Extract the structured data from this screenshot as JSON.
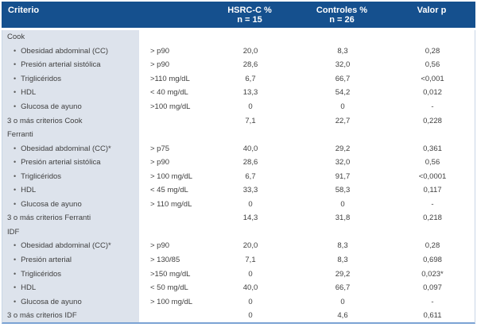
{
  "colors": {
    "header_bg": "#15508e",
    "header_text": "#ffffff",
    "row_label_bg": "#dde3ec",
    "body_text": "#3f3f3f",
    "border_light": "#c9d6e6",
    "border_bottom": "#7ba3d4"
  },
  "table": {
    "header": {
      "criterio": "Criterio",
      "hsrc_line1": "HSRC-C %",
      "hsrc_line2": "n = 15",
      "controles_line1": "Controles %",
      "controles_line2": "n = 26",
      "valor_p": "Valor p"
    },
    "rows": [
      {
        "type": "section",
        "label": "Cook",
        "threshold": "",
        "hsrc": "",
        "controles": "",
        "p": ""
      },
      {
        "type": "item",
        "label": "Obesidad abdominal (CC)",
        "threshold": "> p90",
        "hsrc": "20,0",
        "controles": "8,3",
        "p": "0,28"
      },
      {
        "type": "item",
        "label": "Presión arterial sistólica",
        "threshold": "> p90",
        "hsrc": "28,6",
        "controles": "32,0",
        "p": "0,56"
      },
      {
        "type": "item",
        "label": "Triglicéridos",
        "threshold": ">110 mg/dL",
        "hsrc": "6,7",
        "controles": "66,7",
        "p": "<0,001"
      },
      {
        "type": "item",
        "label": "HDL",
        "threshold": "< 40 mg/dL",
        "hsrc": "13,3",
        "controles": "54,2",
        "p": "0,012"
      },
      {
        "type": "item",
        "label": "Glucosa de ayuno",
        "threshold": ">100 mg/dL",
        "hsrc": "0",
        "controles": "0",
        "p": "-"
      },
      {
        "type": "summary",
        "label": "3 o más criterios Cook",
        "threshold": "",
        "hsrc": "7,1",
        "controles": "22,7",
        "p": "0,228"
      },
      {
        "type": "section",
        "label": "Ferranti",
        "threshold": "",
        "hsrc": "",
        "controles": "",
        "p": ""
      },
      {
        "type": "item",
        "label": "Obesidad abdominal (CC)*",
        "threshold": "> p75",
        "hsrc": "40,0",
        "controles": "29,2",
        "p": "0,361"
      },
      {
        "type": "item",
        "label": "Presión arterial sistólica",
        "threshold": "> p90",
        "hsrc": "28,6",
        "controles": "32,0",
        "p": "0,56"
      },
      {
        "type": "item",
        "label": "Triglicéridos",
        "threshold": "> 100 mg/dL",
        "hsrc": "6,7",
        "controles": "91,7",
        "p": "<0,0001"
      },
      {
        "type": "item",
        "label": "HDL",
        "threshold": "< 45 mg/dL",
        "hsrc": "33,3",
        "controles": "58,3",
        "p": "0,117"
      },
      {
        "type": "item",
        "label": "Glucosa de ayuno",
        "threshold": "> 110 mg/dL",
        "hsrc": "0",
        "controles": "0",
        "p": "-"
      },
      {
        "type": "summary",
        "label": "3 o más criterios Ferranti",
        "threshold": "",
        "hsrc": "14,3",
        "controles": "31,8",
        "p": "0,218"
      },
      {
        "type": "section",
        "label": "IDF",
        "threshold": "",
        "hsrc": "",
        "controles": "",
        "p": ""
      },
      {
        "type": "item",
        "label": "Obesidad abdominal (CC)*",
        "threshold": "> p90",
        "hsrc": "20,0",
        "controles": "8,3",
        "p": "0,28"
      },
      {
        "type": "item",
        "label": "Presión arterial",
        "threshold": "> 130/85",
        "hsrc": "7,1",
        "controles": "8,3",
        "p": "0,698"
      },
      {
        "type": "item",
        "label": "Triglicéridos",
        "threshold": ">150 mg/dL",
        "hsrc": "0",
        "controles": "29,2",
        "p": "0,023*"
      },
      {
        "type": "item",
        "label": "HDL",
        "threshold": "< 50 mg/dL",
        "hsrc": "40,0",
        "controles": "66,7",
        "p": "0,097"
      },
      {
        "type": "item",
        "label": "Glucosa de ayuno",
        "threshold": "> 100 mg/dL",
        "hsrc": "0",
        "controles": "0",
        "p": "-"
      },
      {
        "type": "summary",
        "label": "3 o más criterios IDF",
        "threshold": "",
        "hsrc": "0",
        "controles": "4,6",
        "p": "0,611"
      }
    ]
  }
}
